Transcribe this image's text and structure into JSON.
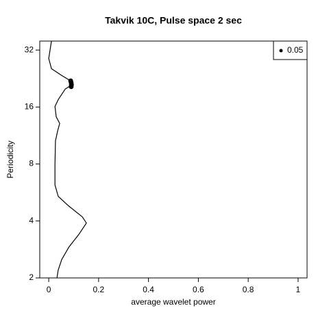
{
  "chart_data": {
    "type": "line",
    "title": "Takvik 10C, Pulse space 2 sec",
    "x_label": "average wavelet power",
    "y_label": "Periodicity",
    "xlim": [
      -0.036,
      1.036
    ],
    "xticks": [
      0,
      0.2,
      0.4,
      0.6,
      0.8,
      1
    ],
    "ylim": [
      2,
      35.7
    ],
    "yticks": [
      2,
      4,
      8,
      16,
      32
    ],
    "ylog": true,
    "legend": "top-right",
    "series": [
      {
        "color": "#000000",
        "x": [
          0.011,
          0.0,
          0.011,
          0.052,
          0.088,
          0.091,
          0.066,
          0.038,
          0.025,
          0.03,
          0.044,
          0.036,
          0.027,
          0.025,
          0.025,
          0.038,
          0.08,
          0.135,
          0.151,
          0.121,
          0.08,
          0.052,
          0.038,
          0.033
        ],
        "values": [
          35.7,
          28.9,
          25.5,
          23.5,
          22.0,
          20.9,
          19.9,
          17.5,
          16.1,
          14.2,
          13.1,
          12.0,
          10.6,
          7.9,
          6.2,
          5.4,
          4.8,
          4.2,
          3.9,
          3.4,
          2.9,
          2.5,
          2.2,
          2.0
        ]
      },
      {
        "name": "0.05",
        "color": "#000000",
        "type": "scatter",
        "x": [
          0.088,
          0.09,
          0.091,
          0.09
        ],
        "values": [
          22.0,
          21.5,
          21.0,
          20.5
        ]
      }
    ]
  }
}
